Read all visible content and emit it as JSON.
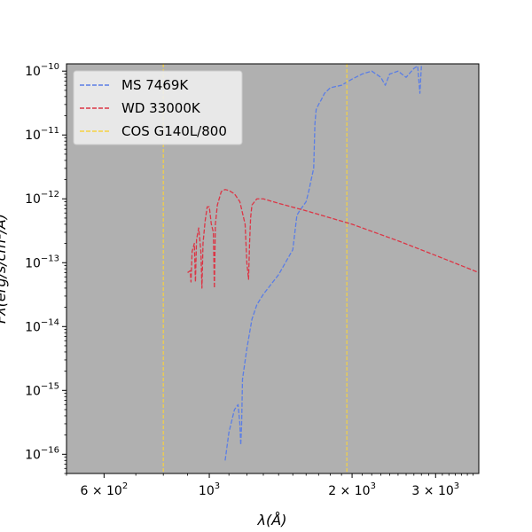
{
  "chart_data": {
    "type": "line",
    "title": "",
    "xlabel": "λ(Å)",
    "ylabel": "Fλ(erg/s/cm²/Å)",
    "xscale": "log",
    "yscale": "log",
    "xlim": [
      500,
      3700
    ],
    "ylim": [
      5e-17,
      1.3e-10
    ],
    "grid": false,
    "background_color": "#b0b0b0",
    "legend_placement": "top-left",
    "x_ticks": [
      {
        "value": 600,
        "mantissa": "6 × 10",
        "exp": "2"
      },
      {
        "value": 1000,
        "mantissa": "10",
        "exp": "3"
      },
      {
        "value": 2000,
        "mantissa": "2 × 10",
        "exp": "3"
      },
      {
        "value": 3000,
        "mantissa": "3 × 10",
        "exp": "3"
      }
    ],
    "y_ticks": [
      {
        "value": 1e-16,
        "mantissa": "10",
        "exp": "−16"
      },
      {
        "value": 1e-15,
        "mantissa": "10",
        "exp": "−15"
      },
      {
        "value": 1e-14,
        "mantissa": "10",
        "exp": "−14"
      },
      {
        "value": 1e-13,
        "mantissa": "10",
        "exp": "−13"
      },
      {
        "value": 1e-12,
        "mantissa": "10",
        "exp": "−12"
      },
      {
        "value": 1e-11,
        "mantissa": "10",
        "exp": "−11"
      },
      {
        "value": 1e-10,
        "mantissa": "10",
        "exp": "−10"
      }
    ],
    "series": [
      {
        "name": "MS 7469K",
        "color": "#5b7ee5",
        "style": "dashed",
        "x": [
          1080,
          1100,
          1130,
          1150,
          1160,
          1165,
          1170,
          1175,
          1200,
          1230,
          1260,
          1300,
          1400,
          1500,
          1530,
          1550,
          1600,
          1620,
          1640,
          1660,
          1670,
          1680,
          1700,
          1720,
          1750,
          1800,
          1900,
          2000,
          2100,
          2200,
          2300,
          2350,
          2400,
          2500,
          2600,
          2700,
          2750,
          2780,
          2800
        ],
        "y": [
          8e-17,
          2.2e-16,
          5e-16,
          6e-16,
          3e-16,
          1.4e-16,
          3e-16,
          1.5e-15,
          4.5e-15,
          1.3e-14,
          2.2e-14,
          3.2e-14,
          6.5e-14,
          1.6e-13,
          5.5e-13,
          6.5e-13,
          9e-13,
          1.3e-12,
          2e-12,
          3e-12,
          1.5e-11,
          2.5e-11,
          3e-11,
          3.5e-11,
          4.5e-11,
          5.5e-11,
          6e-11,
          7.5e-11,
          9e-11,
          1e-10,
          8e-11,
          6e-11,
          9e-11,
          1e-10,
          8e-11,
          1.1e-10,
          1.2e-10,
          4.5e-11,
          1.2e-10
        ]
      },
      {
        "name": "WD 33000K",
        "color": "#dc3545",
        "style": "dashed",
        "x": [
          900,
          912,
          915,
          920,
          930,
          935,
          940,
          950,
          960,
          965,
          970,
          980,
          990,
          1000,
          1010,
          1020,
          1025,
          1030,
          1040,
          1060,
          1080,
          1100,
          1130,
          1160,
          1190,
          1200,
          1210,
          1216,
          1222,
          1230,
          1260,
          1300,
          1400,
          1600,
          2000,
          2500,
          3000,
          3700
        ],
        "y": [
          7e-14,
          7.5e-14,
          5e-14,
          1.5e-13,
          2e-13,
          5e-14,
          2.3e-13,
          3.5e-13,
          1.5e-13,
          4e-14,
          2e-13,
          4.5e-13,
          7.5e-13,
          7.5e-13,
          4e-13,
          3e-13,
          4e-14,
          4e-13,
          8e-13,
          1.3e-12,
          1.4e-12,
          1.35e-12,
          1.2e-12,
          9e-13,
          4e-13,
          1e-13,
          5.5e-14,
          2e-13,
          5e-13,
          8e-13,
          1e-12,
          1e-12,
          8.5e-13,
          6.5e-13,
          4e-13,
          2.2e-13,
          1.3e-13,
          7e-14
        ]
      },
      {
        "name": "COS G140L/800",
        "color": "#f5d142",
        "style": "dashed",
        "vlines": [
          800,
          1950
        ]
      }
    ]
  }
}
